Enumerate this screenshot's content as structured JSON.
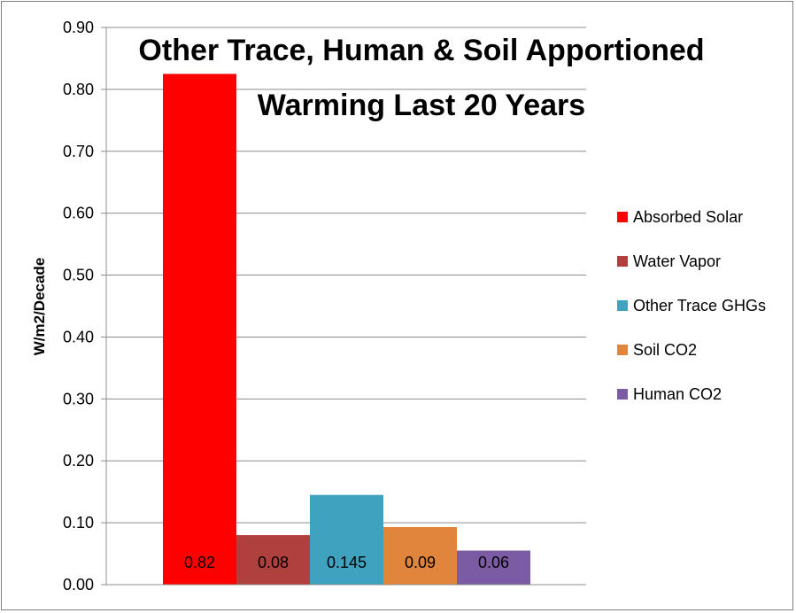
{
  "chart_data": {
    "type": "bar",
    "title_lines": [
      "Other Trace, Human & Soil Apportioned",
      "Warming Last 20 Years"
    ],
    "ylabel": "W/m2/Decade",
    "ylim": [
      0,
      0.9
    ],
    "yticks": [
      "0.00",
      "0.10",
      "0.20",
      "0.30",
      "0.40",
      "0.50",
      "0.60",
      "0.70",
      "0.80",
      "0.90"
    ],
    "grid": true,
    "legend_position": "right",
    "series": [
      {
        "name": "Absorbed Solar",
        "value": 0.825,
        "label": "0.82",
        "color": "#ff0000"
      },
      {
        "name": "Water Vapor",
        "value": 0.08,
        "label": "0.08",
        "color": "#b0403e"
      },
      {
        "name": "Other Trace GHGs",
        "value": 0.145,
        "label": "0.145",
        "color": "#3fa3bf"
      },
      {
        "name": "Soil CO2",
        "value": 0.093,
        "label": "0.09",
        "color": "#e0853b"
      },
      {
        "name": "Human CO2",
        "value": 0.055,
        "label": "0.06",
        "color": "#7b5ca4"
      }
    ]
  }
}
